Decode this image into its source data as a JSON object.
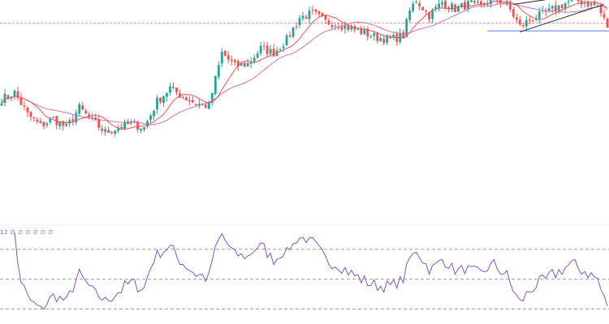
{
  "chart_data": [
    {
      "type": "candlestick",
      "title": "",
      "xlabel": "",
      "ylabel": "",
      "ylim": [
        0,
        100
      ],
      "up_color": "#26a69a",
      "down_color": "#ef5350",
      "ma_fast_color": "#ef5350",
      "ma_slow_color": "#d36fb8",
      "reference_line": {
        "value": 89.5,
        "style": "dashed",
        "color": "#ef9a9a"
      },
      "support_line": {
        "value": 86,
        "style": "solid",
        "color": "#5c7fd6"
      },
      "wedge": {
        "upper": [
          [
            158,
            98
          ],
          [
            186,
            104
          ]
        ],
        "lower": [
          [
            160,
            85.5
          ],
          [
            186,
            98
          ]
        ]
      },
      "anchors": [
        [
          0,
          55
        ],
        [
          4,
          58
        ],
        [
          8,
          48
        ],
        [
          12,
          43
        ],
        [
          16,
          46
        ],
        [
          20,
          42
        ],
        [
          24,
          51
        ],
        [
          28,
          45
        ],
        [
          32,
          40
        ],
        [
          36,
          42
        ],
        [
          40,
          44
        ],
        [
          44,
          42
        ],
        [
          48,
          54
        ],
        [
          52,
          60
        ],
        [
          56,
          56
        ],
        [
          60,
          53
        ],
        [
          64,
          52
        ],
        [
          68,
          76
        ],
        [
          72,
          70
        ],
        [
          76,
          71
        ],
        [
          80,
          78
        ],
        [
          84,
          76
        ],
        [
          88,
          82
        ],
        [
          92,
          92
        ],
        [
          96,
          94
        ],
        [
          100,
          90
        ],
        [
          104,
          89
        ],
        [
          108,
          87
        ],
        [
          112,
          85
        ],
        [
          116,
          83
        ],
        [
          120,
          82
        ],
        [
          124,
          84
        ],
        [
          126,
          95
        ],
        [
          128,
          100
        ],
        [
          132,
          93
        ],
        [
          136,
          99
        ],
        [
          140,
          96
        ],
        [
          144,
          98
        ],
        [
          148,
          97
        ],
        [
          152,
          101
        ],
        [
          156,
          98
        ],
        [
          160,
          88
        ],
        [
          164,
          92
        ],
        [
          168,
          94
        ],
        [
          172,
          97
        ],
        [
          176,
          100
        ],
        [
          180,
          99
        ],
        [
          184,
          97
        ],
        [
          187,
          88
        ]
      ],
      "n_candles": 188,
      "ma_fast_period": 9,
      "ma_slow_period": 21
    },
    {
      "type": "line",
      "title": "",
      "ylim": [
        20,
        85
      ],
      "levels": [
        70,
        50,
        30
      ],
      "line_color": "#7e57c2",
      "level_color": "#9e9e9e",
      "overbought_fill": "#66bb6a",
      "oversold_fill": "#ef5350",
      "indicator_label": "12 ∅ ∅ ∅ ∅ ∅ ∅"
    }
  ]
}
